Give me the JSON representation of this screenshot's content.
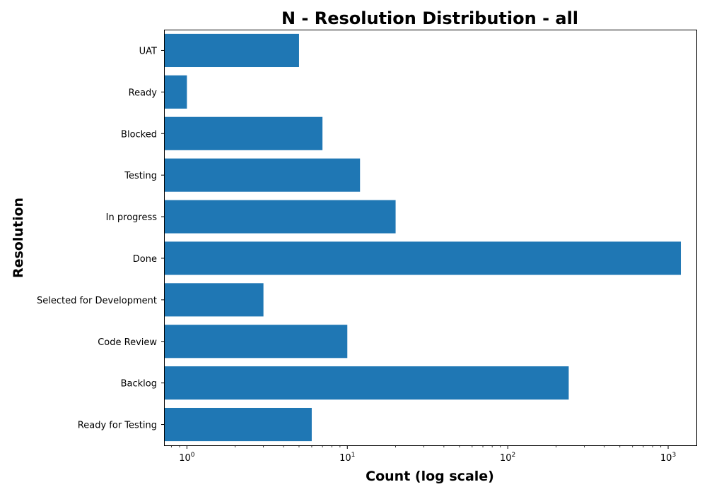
{
  "chart_data": {
    "type": "bar",
    "orientation": "horizontal",
    "title": "N - Resolution Distribution - all",
    "xlabel": "Count (log scale)",
    "ylabel": "Resolution",
    "x_scale": "log",
    "xlim": [
      0.72,
      1500
    ],
    "x_ticks": [
      {
        "value": 1,
        "base": "10",
        "exp": "0"
      },
      {
        "value": 10,
        "base": "10",
        "exp": "1"
      },
      {
        "value": 100,
        "base": "10",
        "exp": "2"
      },
      {
        "value": 1000,
        "base": "10",
        "exp": "3"
      }
    ],
    "categories": [
      "UAT",
      "Ready",
      "Blocked",
      "Testing",
      "In progress",
      "Done",
      "Selected for Development",
      "Code Review",
      "Backlog",
      "Ready for Testing"
    ],
    "values": [
      5,
      1,
      7,
      12,
      20,
      1200,
      3,
      10,
      240,
      6
    ],
    "bar_color": "#1f77b4",
    "grid": false,
    "legend": "none"
  }
}
